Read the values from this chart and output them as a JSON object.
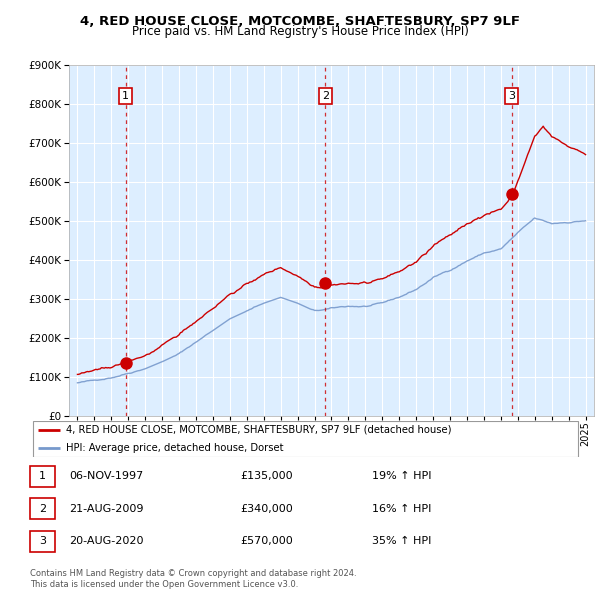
{
  "title": "4, RED HOUSE CLOSE, MOTCOMBE, SHAFTESBURY, SP7 9LF",
  "subtitle": "Price paid vs. HM Land Registry's House Price Index (HPI)",
  "legend_line1": "4, RED HOUSE CLOSE, MOTCOMBE, SHAFTESBURY, SP7 9LF (detached house)",
  "legend_line2": "HPI: Average price, detached house, Dorset",
  "footer": "Contains HM Land Registry data © Crown copyright and database right 2024.\nThis data is licensed under the Open Government Licence v3.0.",
  "sale_color": "#cc0000",
  "hpi_color": "#7799cc",
  "bg_color": "#ddeeff",
  "table_rows": [
    {
      "num": "1",
      "date": "06-NOV-1997",
      "price": "£135,000",
      "change": "19% ↑ HPI"
    },
    {
      "num": "2",
      "date": "21-AUG-2009",
      "price": "£340,000",
      "change": "16% ↑ HPI"
    },
    {
      "num": "3",
      "date": "20-AUG-2020",
      "price": "£570,000",
      "change": "35% ↑ HPI"
    }
  ],
  "sale_dates_decimal": [
    1997.846,
    2009.639,
    2020.639
  ],
  "sale_prices": [
    135000,
    340000,
    570000
  ],
  "ylim": [
    0,
    900000
  ],
  "xlim": [
    1994.5,
    2025.5
  ],
  "yticks": [
    0,
    100000,
    200000,
    300000,
    400000,
    500000,
    600000,
    700000,
    800000,
    900000
  ]
}
